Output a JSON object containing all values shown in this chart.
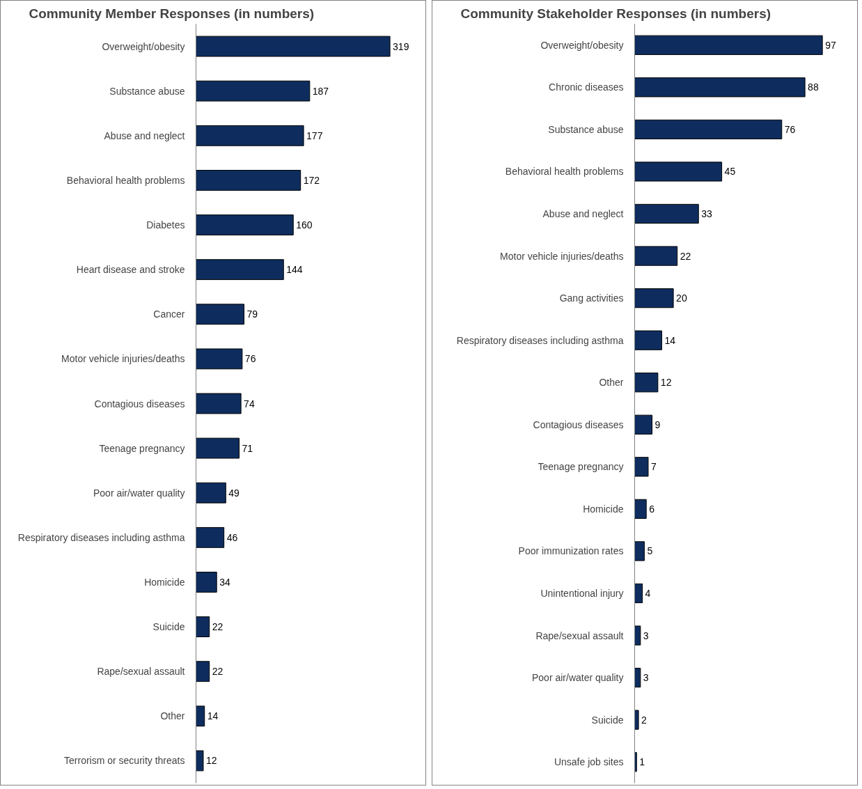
{
  "chart_data": [
    {
      "type": "bar",
      "orientation": "horizontal",
      "title": "Community Member Responses (in numbers)",
      "categories": [
        "Overweight/obesity",
        "Substance abuse",
        "Abuse and neglect",
        "Behavioral health problems",
        "Diabetes",
        "Heart disease and stroke",
        "Cancer",
        "Motor vehicle injuries/deaths",
        "Contagious diseases",
        "Teenage pregnancy",
        "Poor air/water quality",
        "Respiratory diseases including asthma",
        "Homicide",
        "Suicide",
        "Rape/sexual assault",
        "Other",
        "Terrorism or security threats"
      ],
      "values": [
        319,
        187,
        177,
        172,
        160,
        144,
        79,
        76,
        74,
        71,
        49,
        46,
        34,
        22,
        22,
        14,
        12
      ],
      "color": "#0e2d5e",
      "data_labels": true
    },
    {
      "type": "bar",
      "orientation": "horizontal",
      "title": "Community Stakeholder Responses (in numbers)",
      "categories": [
        "Overweight/obesity",
        "Chronic diseases",
        "Substance abuse",
        "Behavioral health problems",
        "Abuse and neglect",
        "Motor vehicle injuries/deaths",
        "Gang activities",
        "Respiratory diseases including asthma",
        "Other",
        "Contagious diseases",
        "Teenage pregnancy",
        "Homicide",
        "Poor immunization rates",
        "Unintentional injury",
        "Rape/sexual assault",
        "Poor air/water quality",
        "Suicide",
        "Unsafe job sites"
      ],
      "values": [
        97,
        88,
        76,
        45,
        33,
        22,
        20,
        14,
        12,
        9,
        7,
        6,
        5,
        4,
        3,
        3,
        2,
        1
      ],
      "color": "#0e2d5e",
      "data_labels": true
    }
  ]
}
